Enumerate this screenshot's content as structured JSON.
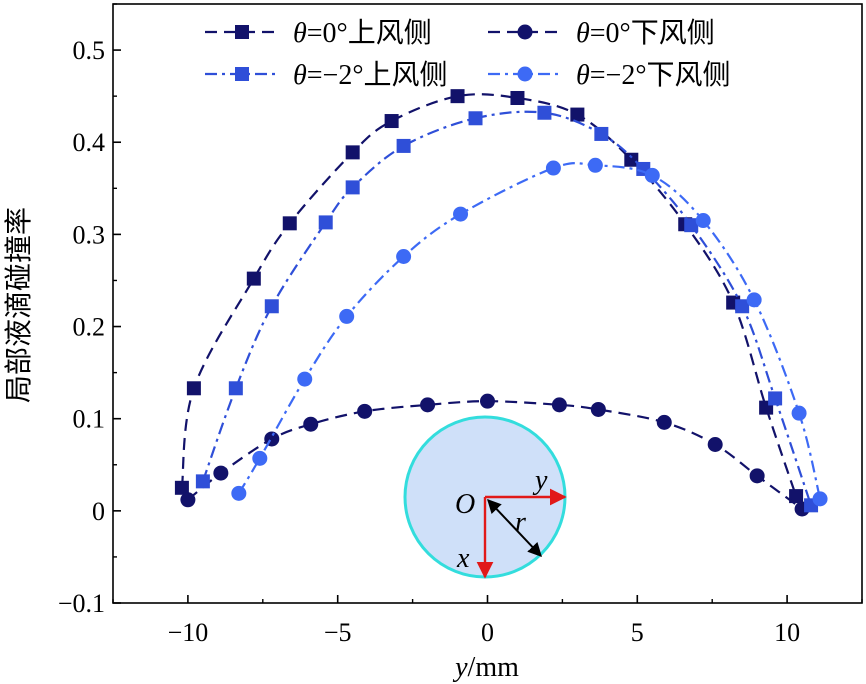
{
  "chart_data": {
    "type": "line",
    "xlabel": "y/mm",
    "xlabel_var": "y",
    "xlabel_unit": "/mm",
    "ylabel": "局部液滴碰撞率",
    "xlim": [
      -12.5,
      12.5
    ],
    "ylim": [
      -0.1,
      0.55
    ],
    "xticks": [
      -10,
      -5,
      0,
      5,
      10
    ],
    "xtick_labels": [
      "−10",
      "−5",
      "0",
      "5",
      "10"
    ],
    "yticks": [
      -0.1,
      0,
      0.1,
      0.2,
      0.3,
      0.4,
      0.5
    ],
    "ytick_labels": [
      "−0.1",
      "0",
      "0.1",
      "0.2",
      "0.3",
      "0.4",
      "0.5"
    ],
    "grid": false,
    "legend_placement": "top",
    "series": [
      {
        "name": "θ=0°上风侧",
        "name_var": "θ",
        "name_rest": "=0°上风侧",
        "color": "#12126a",
        "marker": "square",
        "dash": "dashed",
        "x": [
          -10.2,
          -9.8,
          -7.8,
          -6.6,
          -4.5,
          -3.2,
          -1.0,
          1.0,
          3.0,
          4.8,
          6.6,
          8.2,
          9.3,
          10.3
        ],
        "y": [
          0.025,
          0.133,
          0.252,
          0.312,
          0.389,
          0.423,
          0.45,
          0.448,
          0.43,
          0.381,
          0.311,
          0.226,
          0.112,
          0.016
        ]
      },
      {
        "name": "θ=0°下风侧",
        "name_var": "θ",
        "name_rest": "=0°下风侧",
        "color": "#12126a",
        "marker": "circle",
        "dash": "dashed",
        "x": [
          -10.0,
          -8.9,
          -7.2,
          -5.9,
          -4.1,
          -2.0,
          0.0,
          2.4,
          3.7,
          5.9,
          7.6,
          9.0,
          10.5
        ],
        "y": [
          0.012,
          0.041,
          0.078,
          0.094,
          0.108,
          0.115,
          0.119,
          0.115,
          0.11,
          0.096,
          0.072,
          0.038,
          0.002
        ]
      },
      {
        "name": "θ=−2°上风侧",
        "name_var": "θ",
        "name_rest": "=−2°上风侧",
        "color": "#2f4fd8",
        "marker": "square",
        "dash": "dashdot",
        "x": [
          -9.5,
          -8.4,
          -7.2,
          -5.4,
          -4.5,
          -2.8,
          -0.4,
          1.9,
          3.8,
          5.2,
          6.8,
          8.5,
          9.6,
          10.8
        ],
        "y": [
          0.032,
          0.133,
          0.222,
          0.313,
          0.351,
          0.396,
          0.426,
          0.432,
          0.409,
          0.371,
          0.31,
          0.222,
          0.122,
          0.006
        ]
      },
      {
        "name": "θ=−2°下风侧",
        "name_var": "θ",
        "name_rest": "=−2°下风侧",
        "color": "#3d6af5",
        "marker": "circle",
        "dash": "dashdot",
        "x": [
          -8.3,
          -7.6,
          -6.1,
          -4.7,
          -2.8,
          -0.9,
          2.2,
          3.6,
          5.5,
          7.2,
          8.9,
          10.4,
          11.1
        ],
        "y": [
          0.019,
          0.057,
          0.143,
          0.211,
          0.276,
          0.322,
          0.372,
          0.375,
          0.364,
          0.315,
          0.229,
          0.106,
          0.013
        ]
      }
    ],
    "inset": {
      "description_labels": [
        "O",
        "y",
        "x",
        "r"
      ],
      "fill": "#cfe0f9",
      "stroke": "#33dddd"
    }
  }
}
